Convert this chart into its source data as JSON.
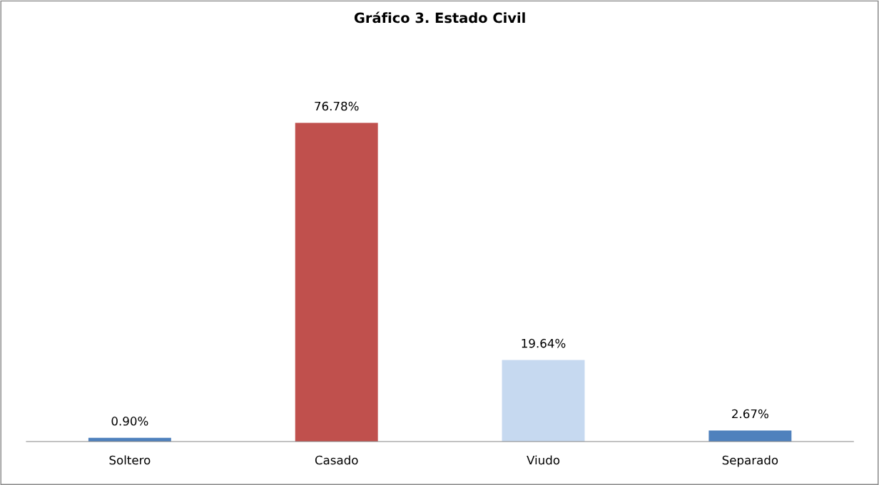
{
  "chart_data": {
    "type": "bar",
    "title": "Gráfico 3. Estado Civil",
    "categories": [
      "Soltero",
      "Casado",
      "Viudo",
      "Separado"
    ],
    "values": [
      0.9,
      76.78,
      19.64,
      2.67
    ],
    "colors": [
      "#4f81bd",
      "#c0504d",
      "#c6d9f0",
      "#4f81bd"
    ],
    "value_labels": [
      "0.90%",
      "76.78%",
      "19.64%",
      "2.67%"
    ],
    "tick_labels": "x",
    "grid": false,
    "legend": false
  }
}
